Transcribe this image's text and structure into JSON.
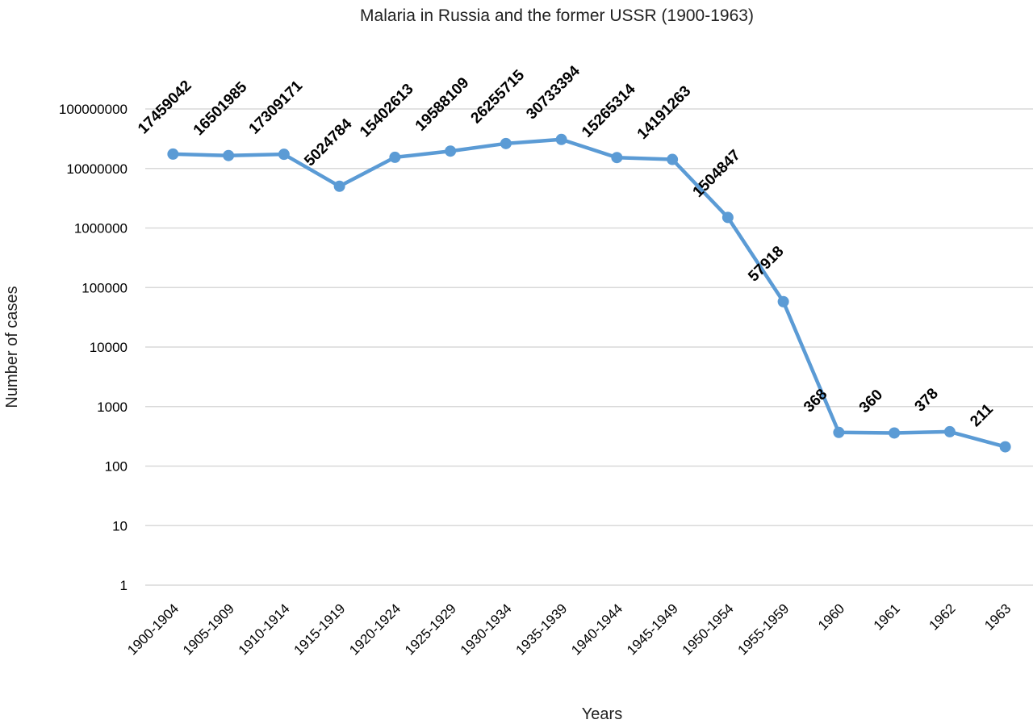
{
  "chart_data": {
    "type": "line",
    "title": "Malaria in Russia and the former USSR (1900-1963)",
    "xlabel": "Years",
    "ylabel": "Number of cases",
    "yscale": "log",
    "ylim": [
      1,
      100000000
    ],
    "yticks": [
      "1",
      "10",
      "100",
      "1000",
      "10000",
      "100000",
      "1000000",
      "10000000",
      "100000000"
    ],
    "grid": true,
    "legend": "none",
    "color": "#5b9bd5",
    "categories": [
      "1900-1904",
      "1905-1909",
      "1910-1914",
      "1915-1919",
      "1920-1924",
      "1925-1929",
      "1930-1934",
      "1935-1939",
      "1940-1944",
      "1945-1949",
      "1950-1954",
      "1955-1959",
      "1960",
      "1961",
      "1962",
      "1963"
    ],
    "series": [
      {
        "name": "Number of cases",
        "values": [
          17459042,
          16501985,
          17309171,
          5024784,
          15402613,
          19588109,
          26255715,
          30733394,
          15265314,
          14191263,
          1504847,
          57918,
          368,
          360,
          378,
          211
        ]
      }
    ]
  }
}
